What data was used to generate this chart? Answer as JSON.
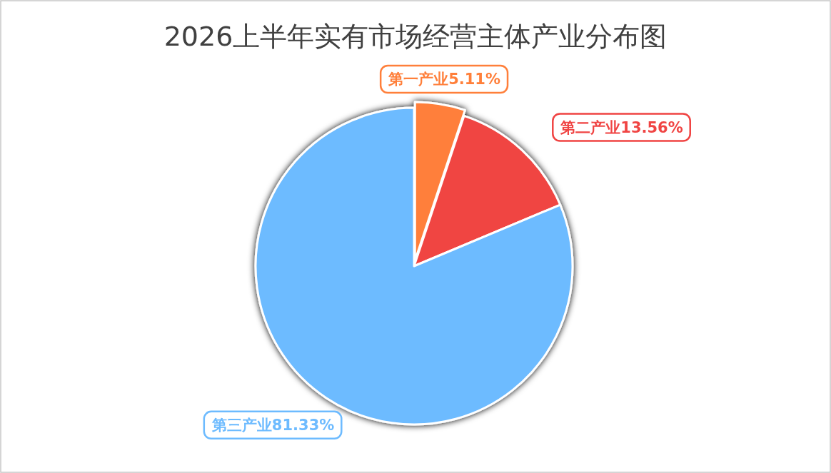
{
  "chart_data": {
    "type": "pie",
    "title": "2026上半年实有市场经营主体产业分布图",
    "categories": [
      "第一产业",
      "第二产业",
      "第三产业"
    ],
    "values": [
      5.11,
      13.56,
      81.33
    ],
    "value_labels": [
      "5.11%",
      "13.56%",
      "81.33%"
    ],
    "colors": [
      "#ff7f3a",
      "#f04443",
      "#6dbbff"
    ],
    "legend": false
  }
}
